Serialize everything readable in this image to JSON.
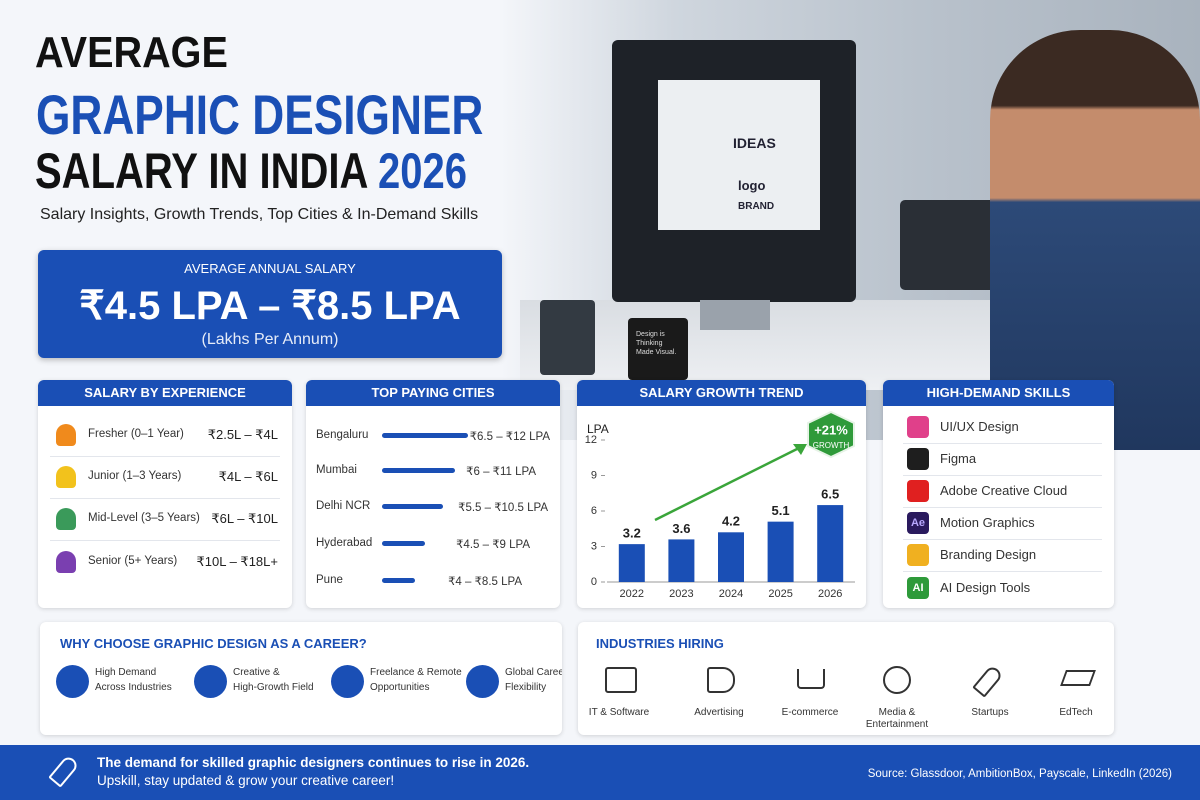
{
  "header": {
    "title_line1": "AVERAGE",
    "title_line2": "GRAPHIC DESIGNER",
    "title_line3": "SALARY IN INDIA",
    "title_year": "2026",
    "subtitle": "Salary Insights, Growth Trends, Top Cities & In-Demand Skills"
  },
  "photo": {
    "screen_text1": "IDEAS",
    "screen_text2": "logo",
    "screen_text3": "BRAND",
    "mug_text": "Design is Thinking Made Visual."
  },
  "salary_box": {
    "label": "AVERAGE ANNUAL SALARY",
    "range": "₹4.5 LPA – ₹8.5 LPA",
    "note": "(Lakhs Per Annum)"
  },
  "experience": {
    "title": "SALARY BY EXPERIENCE",
    "rows": [
      {
        "level": "Fresher (0–1 Year)",
        "salary": "₹2.5L – ₹4L"
      },
      {
        "level": "Junior (1–3 Years)",
        "salary": "₹4L – ₹6L"
      },
      {
        "level": "Mid-Level (3–5 Years)",
        "salary": "₹6L – ₹10L"
      },
      {
        "level": "Senior (5+ Years)",
        "salary": "₹10L – ₹18L+"
      }
    ]
  },
  "cities": {
    "title": "TOP PAYING CITIES",
    "rows": [
      {
        "city": "Bengaluru",
        "salary": "₹6.5 – ₹12 LPA"
      },
      {
        "city": "Mumbai",
        "salary": "₹6 – ₹11 LPA"
      },
      {
        "city": "Delhi NCR",
        "salary": "₹5.5 – ₹10.5 LPA"
      },
      {
        "city": "Hyderabad",
        "salary": "₹4.5 – ₹9 LPA"
      },
      {
        "city": "Pune",
        "salary": "₹4 – ₹8.5 LPA"
      }
    ]
  },
  "chart_data": {
    "type": "bar",
    "title": "SALARY GROWTH TREND",
    "y_label": "LPA",
    "categories": [
      "2022",
      "2023",
      "2024",
      "2025",
      "2026"
    ],
    "values": [
      3.2,
      3.6,
      4.2,
      5.1,
      6.5
    ],
    "color": "#1a4fb5",
    "ylim": [
      0,
      12
    ],
    "yticks": [
      0,
      3,
      6,
      9,
      12
    ],
    "annotation": "+21%",
    "annotation_sub": "GROWTH"
  },
  "skills": {
    "title": "HIGH-DEMAND SKILLS",
    "items": [
      {
        "name": "UI/UX Design"
      },
      {
        "name": "Figma"
      },
      {
        "name": "Adobe Creative Cloud"
      },
      {
        "name": "Motion Graphics",
        "icon": "Ae"
      },
      {
        "name": "Branding Design"
      },
      {
        "name": "AI Design Tools",
        "icon": "AI"
      }
    ]
  },
  "why": {
    "title": "WHY CHOOSE GRAPHIC DESIGN AS A CAREER?",
    "items": [
      {
        "line1": "High Demand",
        "line2": "Across Industries"
      },
      {
        "line1": "Creative &",
        "line2": "High-Growth Field"
      },
      {
        "line1": "Freelance & Remote",
        "line2": "Opportunities"
      },
      {
        "line1": "Global Career",
        "line2": "Flexibility"
      }
    ]
  },
  "industries": {
    "title": "INDUSTRIES HIRING",
    "items": [
      "IT & Software",
      "Advertising",
      "E-commerce",
      "Media & Entertainment",
      "Startups",
      "EdTech"
    ]
  },
  "footer": {
    "message_line1": "The demand for skilled graphic designers continues to rise in 2026.",
    "message_line2": "Upskill, stay updated & grow your creative career!",
    "source": "Source: Glassdoor, AmbitionBox, Payscale, LinkedIn (2026)"
  }
}
